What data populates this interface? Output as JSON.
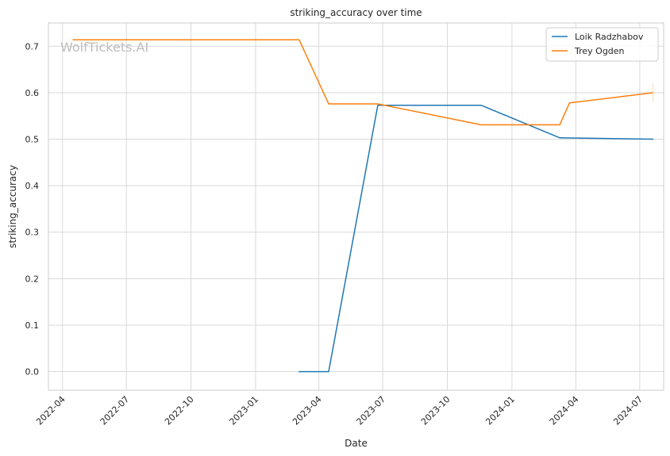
{
  "chart_data": {
    "type": "line",
    "title": "striking_accuracy over time",
    "xlabel": "Date",
    "ylabel": "striking_accuracy",
    "watermark": "WolfTickets.AI",
    "xlim": [
      "2022-03-12",
      "2024-08-04"
    ],
    "ylim": [
      -0.04,
      0.75
    ],
    "x_ticks": [
      "2022-04-01",
      "2022-07-01",
      "2022-10-01",
      "2023-01-01",
      "2023-04-01",
      "2023-07-01",
      "2023-10-01",
      "2024-01-01",
      "2024-04-01",
      "2024-07-01"
    ],
    "x_tick_labels": [
      "2022-04",
      "2022-07",
      "2022-10",
      "2023-01",
      "2023-04",
      "2023-07",
      "2023-10",
      "2024-01",
      "2024-04",
      "2024-07"
    ],
    "y_ticks": [
      0.0,
      0.1,
      0.2,
      0.3,
      0.4,
      0.5,
      0.6,
      0.7
    ],
    "y_tick_labels": [
      "0.0",
      "0.1",
      "0.2",
      "0.3",
      "0.4",
      "0.5",
      "0.6",
      "0.7"
    ],
    "grid": true,
    "legend_position": "top-right",
    "series": [
      {
        "name": "Loik Radzhabov",
        "color": "#1f77b4",
        "points": [
          {
            "x": "2023-03-04",
            "y": 0.0
          },
          {
            "x": "2023-04-15",
            "y": 0.0
          },
          {
            "x": "2023-06-24",
            "y": 0.573
          },
          {
            "x": "2023-11-18",
            "y": 0.573
          },
          {
            "x": "2024-03-09",
            "y": 0.503
          },
          {
            "x": "2024-07-20",
            "y": 0.5
          }
        ]
      },
      {
        "name": "Trey Ogden",
        "color": "#ff7f0e",
        "points": [
          {
            "x": "2022-04-16",
            "y": 0.714
          },
          {
            "x": "2023-03-04",
            "y": 0.714
          },
          {
            "x": "2023-04-15",
            "y": 0.576
          },
          {
            "x": "2023-06-24",
            "y": 0.576
          },
          {
            "x": "2023-11-18",
            "y": 0.531
          },
          {
            "x": "2024-03-09",
            "y": 0.531
          },
          {
            "x": "2024-03-23",
            "y": 0.578
          },
          {
            "x": "2024-07-20",
            "y": 0.6
          }
        ]
      }
    ]
  }
}
